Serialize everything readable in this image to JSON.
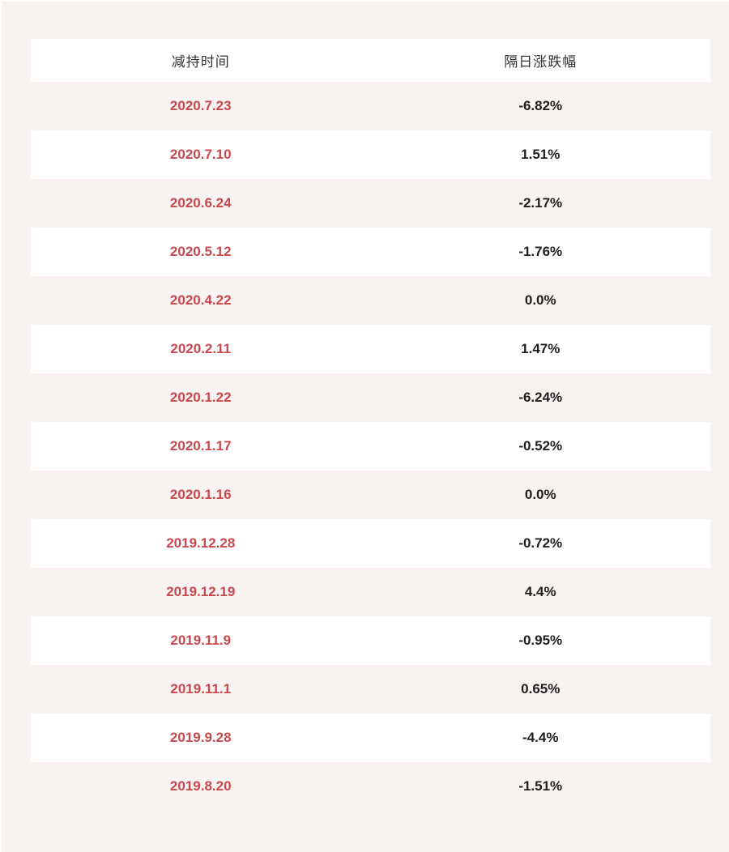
{
  "colors": {
    "page_background": "#f8f2f1",
    "row_alt_background": "#ffffff",
    "header_text": "#333333",
    "date_text": "#c9484e",
    "change_text": "#1f1f1f"
  },
  "chart_data": {
    "type": "table",
    "columns": [
      "减持时间",
      "隔日涨跌幅"
    ],
    "rows": [
      {
        "date": "2020.7.23",
        "change_label": "-6.82%",
        "change_pct": -6.82
      },
      {
        "date": "2020.7.10",
        "change_label": "1.51%",
        "change_pct": 1.51
      },
      {
        "date": "2020.6.24",
        "change_label": "-2.17%",
        "change_pct": -2.17
      },
      {
        "date": "2020.5.12",
        "change_label": "-1.76%",
        "change_pct": -1.76
      },
      {
        "date": "2020.4.22",
        "change_label": "0.0%",
        "change_pct": 0.0
      },
      {
        "date": "2020.2.11",
        "change_label": "1.47%",
        "change_pct": 1.47
      },
      {
        "date": "2020.1.22",
        "change_label": "-6.24%",
        "change_pct": -6.24
      },
      {
        "date": "2020.1.17",
        "change_label": "-0.52%",
        "change_pct": -0.52
      },
      {
        "date": "2020.1.16",
        "change_label": "0.0%",
        "change_pct": 0.0
      },
      {
        "date": "2019.12.28",
        "change_label": "-0.72%",
        "change_pct": -0.72
      },
      {
        "date": "2019.12.19",
        "change_label": "4.4%",
        "change_pct": 4.4
      },
      {
        "date": "2019.11.9",
        "change_label": "-0.95%",
        "change_pct": -0.95
      },
      {
        "date": "2019.11.1",
        "change_label": "0.65%",
        "change_pct": 0.65
      },
      {
        "date": "2019.9.28",
        "change_label": "-4.4%",
        "change_pct": -4.4
      },
      {
        "date": "2019.8.20",
        "change_label": "-1.51%",
        "change_pct": -1.51
      }
    ]
  }
}
